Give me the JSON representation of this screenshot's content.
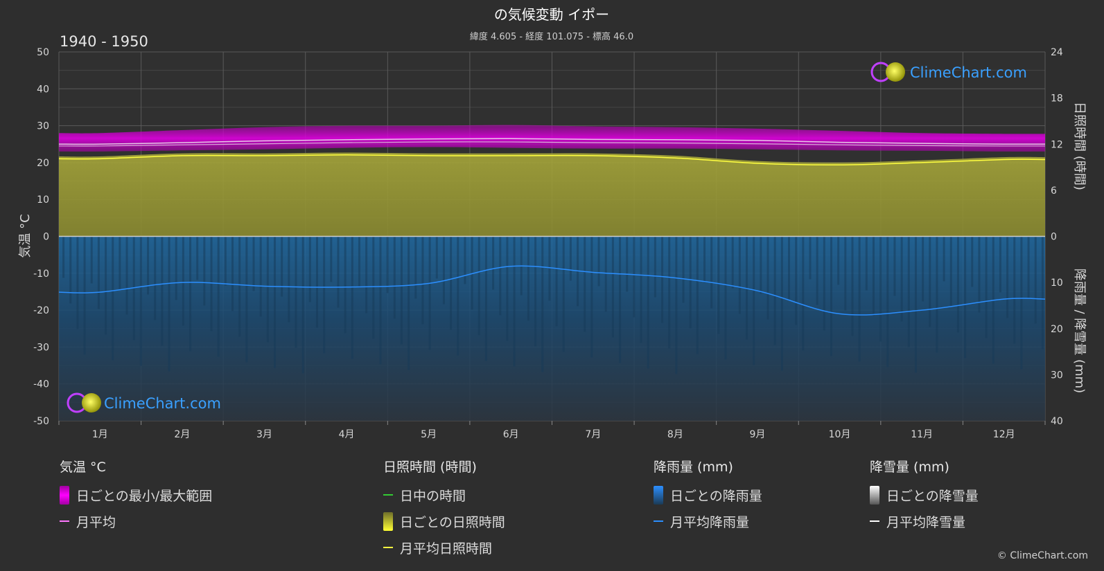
{
  "header": {
    "title": "の気候変動 イポー",
    "subtitle": "緯度 4.605 - 経度 101.075 - 標高 46.0",
    "period": "1940 - 1950"
  },
  "axes": {
    "left_label": "気温 °C",
    "right_top_label": "日照時間 (時間)",
    "right_bottom_label": "降雨量 / 降雪量 (mm)",
    "left_ticks": [
      "50",
      "40",
      "30",
      "20",
      "10",
      "0",
      "-10",
      "-20",
      "-30",
      "-40",
      "-50"
    ],
    "right_top_ticks": [
      "24",
      "18",
      "12",
      "6",
      "0"
    ],
    "right_bottom_ticks": [
      "10",
      "20",
      "30",
      "40"
    ]
  },
  "logo": {
    "text": "ClimeChart.com"
  },
  "chart_data": {
    "type": "area",
    "categories": [
      "1月",
      "2月",
      "3月",
      "4月",
      "5月",
      "6月",
      "7月",
      "8月",
      "9月",
      "10月",
      "11月",
      "12月"
    ],
    "temperature_c": {
      "ylim": [
        -50,
        50
      ],
      "daily_min_approx": [
        23.0,
        23.3,
        23.6,
        24.0,
        24.2,
        24.0,
        23.8,
        23.8,
        23.6,
        23.3,
        23.2,
        23.0
      ],
      "daily_max_approx": [
        28.0,
        28.8,
        29.6,
        30.0,
        30.0,
        30.2,
        29.8,
        29.6,
        29.2,
        28.6,
        28.0,
        27.8
      ],
      "monthly_mean_upper": [
        25.0,
        25.4,
        25.9,
        26.2,
        26.4,
        26.5,
        26.3,
        26.2,
        26.0,
        25.5,
        25.2,
        25.0
      ],
      "monthly_mean_lower": [
        24.5,
        24.8,
        25.1,
        25.4,
        25.6,
        25.6,
        25.4,
        25.3,
        25.1,
        24.8,
        24.6,
        24.5
      ]
    },
    "sunshine_hours": {
      "ylim": [
        0,
        24
      ],
      "monthly_mean": [
        10.1,
        10.5,
        10.5,
        10.6,
        10.5,
        10.5,
        10.5,
        10.2,
        9.5,
        9.3,
        9.6,
        10.0
      ]
    },
    "rainfall_mm": {
      "ylim": [
        0,
        40
      ],
      "monthly_mean": [
        12.1,
        10.0,
        10.8,
        11.0,
        10.2,
        6.5,
        7.8,
        9.0,
        11.8,
        16.8,
        16.0,
        13.6
      ]
    },
    "snowfall_mm": {
      "monthly_mean": [
        0,
        0,
        0,
        0,
        0,
        0,
        0,
        0,
        0,
        0,
        0,
        0
      ]
    },
    "colors": {
      "temp_range": "#d400d4",
      "temp_mean": "#ff77ff",
      "sunshine_fill": "#9c9c33",
      "sunshine_mean": "#ffff40",
      "daylight": "#33cc33",
      "rain_fill": "#1e5f94",
      "rain_mean": "#2c8fff",
      "snow": "#ffffff"
    }
  },
  "legend": {
    "temperature": {
      "title": "気温 °C",
      "range_label": "日ごとの最小/最大範囲",
      "mean_label": "月平均"
    },
    "sunshine": {
      "title": "日照時間 (時間)",
      "daylight_label": "日中の時間",
      "daily_label": "日ごとの日照時間",
      "mean_label": "月平均日照時間"
    },
    "rain": {
      "title": "降雨量 (mm)",
      "daily_label": "日ごとの降雨量",
      "mean_label": "月平均降雨量"
    },
    "snow": {
      "title": "降雪量 (mm)",
      "daily_label": "日ごとの降雪量",
      "mean_label": "月平均降雪量"
    }
  },
  "copyright": "© ClimeChart.com"
}
